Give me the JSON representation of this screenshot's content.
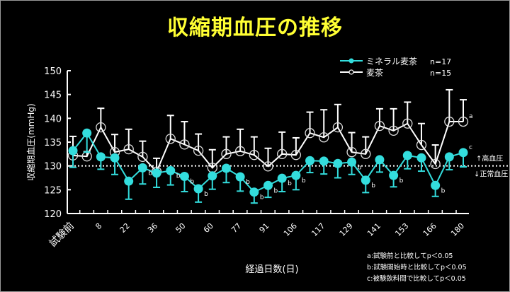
{
  "title": "収縮期血圧の推移",
  "chart_data": {
    "type": "line",
    "title": "収縮期血圧の推移",
    "xlabel": "経過日数(日)",
    "ylabel": "収縮期血圧(mmHg)",
    "ylim": [
      120,
      150
    ],
    "yticks": [
      120,
      125,
      130,
      135,
      140,
      145,
      150
    ],
    "grid": false,
    "legend_position": "top-right",
    "x_tick_labels": [
      "試験前",
      "8",
      "22",
      "36",
      "50",
      "60",
      "77",
      "91",
      "106",
      "117",
      "129",
      "141",
      "153",
      "166",
      "180"
    ],
    "x_tick_label_positions": [
      0,
      2,
      4,
      6,
      8,
      10,
      12,
      14,
      16,
      18,
      20,
      22,
      24,
      26,
      28
    ],
    "point_count": 29,
    "series": [
      {
        "name": "ミネラル麦茶",
        "n_label": "n=17",
        "color": "#33dddd",
        "marker": "filled-circle",
        "error_direction": "down",
        "values": [
          133.2,
          136.9,
          131.9,
          131.7,
          126.8,
          129.6,
          128.5,
          129.0,
          127.8,
          125.2,
          127.9,
          129.5,
          127.7,
          124.5,
          125.9,
          127.4,
          128.0,
          131.1,
          131.0,
          130.5,
          130.8,
          127.0,
          131.3,
          128.0,
          132.2,
          131.7,
          125.9,
          131.9,
          132.8
        ],
        "errors": [
          3.5,
          4.0,
          2.6,
          3.5,
          3.8,
          3.4,
          3.0,
          3.0,
          3.2,
          2.8,
          2.8,
          3.0,
          3.0,
          2.3,
          2.5,
          2.8,
          3.0,
          2.5,
          2.7,
          3.0,
          2.6,
          2.6,
          2.6,
          2.4,
          2.8,
          2.8,
          2.3,
          2.7,
          3.0
        ],
        "annotations": [
          {
            "index": 5,
            "label": "b"
          },
          {
            "index": 7,
            "label": "b"
          },
          {
            "index": 8,
            "label": "b"
          },
          {
            "index": 9,
            "label": "b"
          },
          {
            "index": 12,
            "label": "b"
          },
          {
            "index": 13,
            "label": "b"
          },
          {
            "index": 14,
            "label": "b"
          },
          {
            "index": 15,
            "label": "b"
          },
          {
            "index": 16,
            "label": "b"
          },
          {
            "index": 20,
            "label": "b"
          },
          {
            "index": 21,
            "label": "b"
          },
          {
            "index": 23,
            "label": "b"
          },
          {
            "index": 26,
            "label": "b"
          },
          {
            "index": 28,
            "label": "c"
          }
        ]
      },
      {
        "name": "麦茶",
        "n_label": "n=15",
        "color": "#ffffff",
        "marker": "open-circle",
        "error_direction": "up",
        "values": [
          132.2,
          132.0,
          138.1,
          132.9,
          133.5,
          131.9,
          128.8,
          135.7,
          134.5,
          133.2,
          129.6,
          132.5,
          133.1,
          132.3,
          129.9,
          132.5,
          132.3,
          136.9,
          136.0,
          138.1,
          132.9,
          132.5,
          138.4,
          137.4,
          138.9,
          134.4,
          130.4,
          139.3,
          139.3
        ],
        "errors": [
          4.0,
          1.0,
          4.0,
          3.7,
          4.2,
          3.3,
          2.8,
          4.9,
          4.8,
          3.5,
          3.8,
          3.6,
          4.6,
          3.8,
          3.8,
          4.6,
          3.6,
          4.4,
          5.8,
          4.8,
          4.1,
          3.6,
          3.6,
          4.6,
          4.5,
          4.5,
          4.0,
          6.7,
          4.6
        ],
        "annotations": [
          {
            "index": 28,
            "label": "a"
          }
        ]
      }
    ],
    "reference_line": {
      "value": 130,
      "style": "dotted",
      "color": "#ffffff",
      "label_above": "↑高血圧",
      "label_below": "↓正常血圧"
    },
    "footnotes": [
      "a:試験前と比較してp＜0.05",
      "b:試験開始時と比較してp＜0.05",
      "c:被験飲料間で比較してp＜0.05"
    ]
  }
}
